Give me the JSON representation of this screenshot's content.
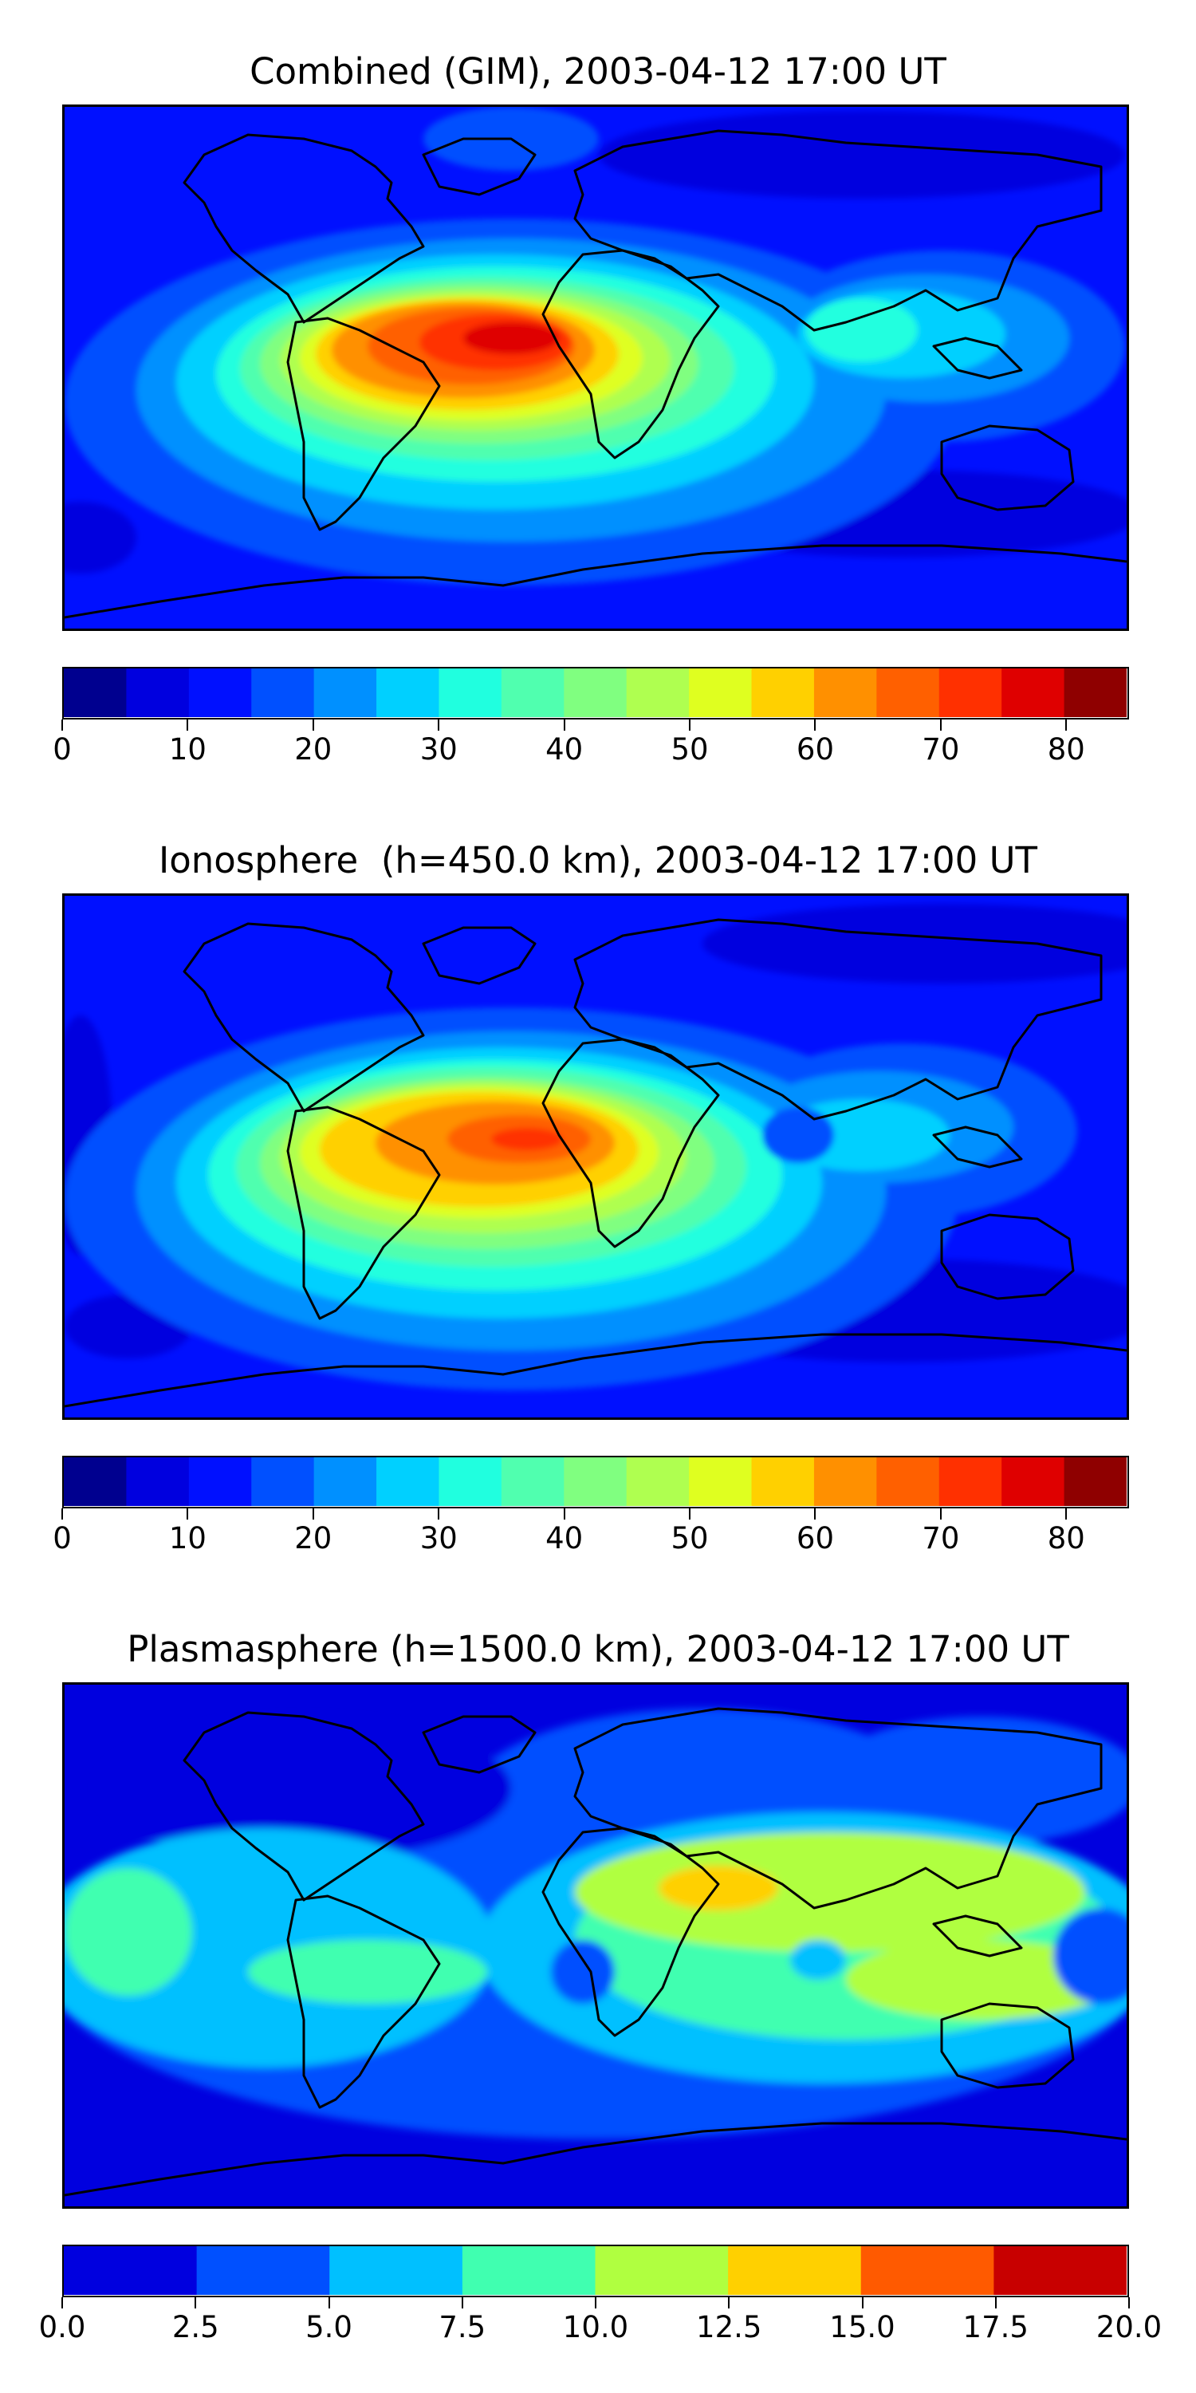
{
  "panels": [
    {
      "title": "Combined (GIM), 2003-04-12 17:00 UT",
      "colorbar": {
        "min": 0,
        "max": 85,
        "step": 5,
        "ticks": [
          0,
          10,
          20,
          30,
          40,
          50,
          60,
          70,
          80
        ],
        "tick_labels": [
          "0",
          "10",
          "20",
          "30",
          "40",
          "50",
          "60",
          "70",
          "80"
        ],
        "colors": [
          "#00008f",
          "#0000df",
          "#0010ff",
          "#0050ff",
          "#0090ff",
          "#00d0ff",
          "#20ffdf",
          "#50ffaf",
          "#80ff80",
          "#afff50",
          "#dfff20",
          "#ffd000",
          "#ff9000",
          "#ff6000",
          "#ff3000",
          "#df0000",
          "#8f0000"
        ]
      }
    },
    {
      "title": "Ionosphere  (h=450.0 km), 2003-04-12 17:00 UT",
      "colorbar": {
        "min": 0,
        "max": 85,
        "step": 5,
        "ticks": [
          0,
          10,
          20,
          30,
          40,
          50,
          60,
          70,
          80
        ],
        "tick_labels": [
          "0",
          "10",
          "20",
          "30",
          "40",
          "50",
          "60",
          "70",
          "80"
        ],
        "colors": [
          "#00008f",
          "#0000df",
          "#0010ff",
          "#0050ff",
          "#0090ff",
          "#00d0ff",
          "#20ffdf",
          "#50ffaf",
          "#80ff80",
          "#afff50",
          "#dfff20",
          "#ffd000",
          "#ff9000",
          "#ff6000",
          "#ff3000",
          "#df0000",
          "#8f0000"
        ]
      }
    },
    {
      "title": "Plasmasphere (h=1500.0 km), 2003-04-12 17:00 UT",
      "colorbar": {
        "min": 0,
        "max": 20,
        "step": 2.5,
        "ticks": [
          0,
          2.5,
          5,
          7.5,
          10,
          12.5,
          15,
          17.5,
          20
        ],
        "tick_labels": [
          "0.0",
          "2.5",
          "5.0",
          "7.5",
          "10.0",
          "12.5",
          "15.0",
          "17.5",
          "20.0"
        ],
        "colors": [
          "#0000df",
          "#0050ff",
          "#00c0ff",
          "#40ffb0",
          "#b0ff40",
          "#ffd000",
          "#ff5a00",
          "#c80000"
        ]
      }
    }
  ]
}
